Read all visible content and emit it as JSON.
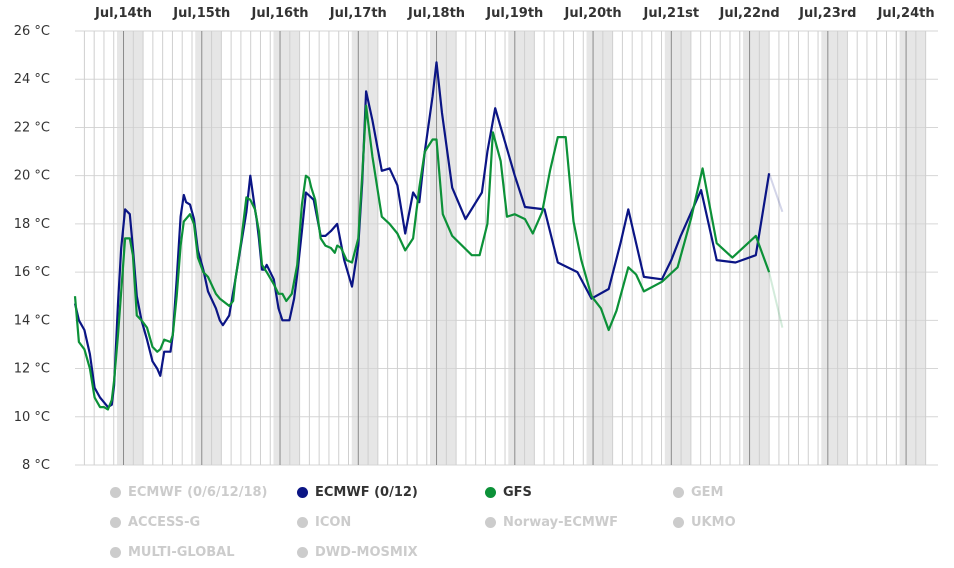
{
  "chart_data": {
    "type": "line",
    "title": "",
    "xlabel": "",
    "ylabel": "",
    "ylim": [
      8,
      26
    ],
    "y_ticks": [
      8,
      10,
      12,
      14,
      16,
      18,
      20,
      22,
      24,
      26
    ],
    "y_unit": "°C",
    "x_unit": "days from Jul 13 00:00",
    "xlim": [
      0.38,
      11.28
    ],
    "categories": [
      "Jul,14th",
      "Jul,15th",
      "Jul,16th",
      "Jul,17th",
      "Jul,18th",
      "Jul,19th",
      "Jul,20th",
      "Jul,21st",
      "Jul,22nd",
      "Jul,23rd",
      "Jul,24th"
    ],
    "category_x": [
      1,
      2,
      3,
      4,
      5,
      6,
      7,
      8,
      9,
      10,
      11
    ],
    "grid": true,
    "night_band_color": "#e6e6e6",
    "legend_position": "bottom",
    "series": [
      {
        "name": "ECMWF (0/12)",
        "color": "#0b1585",
        "active": true,
        "points": [
          [
            0.38,
            14.7
          ],
          [
            0.43,
            14.0
          ],
          [
            0.5,
            13.6
          ],
          [
            0.57,
            12.6
          ],
          [
            0.63,
            11.2
          ],
          [
            0.7,
            10.8
          ],
          [
            0.75,
            10.6
          ],
          [
            0.8,
            10.4
          ],
          [
            0.85,
            10.5
          ],
          [
            0.88,
            11.3
          ],
          [
            0.93,
            14.7
          ],
          [
            0.97,
            17.0
          ],
          [
            1.02,
            18.6
          ],
          [
            1.08,
            18.4
          ],
          [
            1.12,
            17.0
          ],
          [
            1.17,
            15.0
          ],
          [
            1.23,
            14.0
          ],
          [
            1.3,
            13.2
          ],
          [
            1.37,
            12.3
          ],
          [
            1.43,
            12.0
          ],
          [
            1.47,
            11.7
          ],
          [
            1.52,
            12.7
          ],
          [
            1.6,
            12.7
          ],
          [
            1.63,
            13.4
          ],
          [
            1.68,
            15.7
          ],
          [
            1.73,
            18.3
          ],
          [
            1.77,
            19.2
          ],
          [
            1.8,
            18.9
          ],
          [
            1.85,
            18.8
          ],
          [
            1.9,
            18.2
          ],
          [
            1.95,
            16.9
          ],
          [
            2.02,
            16.1
          ],
          [
            2.08,
            15.2
          ],
          [
            2.18,
            14.5
          ],
          [
            2.23,
            14.0
          ],
          [
            2.27,
            13.8
          ],
          [
            2.35,
            14.2
          ],
          [
            2.43,
            15.7
          ],
          [
            2.5,
            17.1
          ],
          [
            2.57,
            18.5
          ],
          [
            2.62,
            20.0
          ],
          [
            2.68,
            18.6
          ],
          [
            2.7,
            18.2
          ],
          [
            2.73,
            17.4
          ],
          [
            2.77,
            16.1
          ],
          [
            2.8,
            16.1
          ],
          [
            2.83,
            16.3
          ],
          [
            2.92,
            15.7
          ],
          [
            2.98,
            14.5
          ],
          [
            3.03,
            14.0
          ],
          [
            3.12,
            14.0
          ],
          [
            3.18,
            14.9
          ],
          [
            3.22,
            15.9
          ],
          [
            3.28,
            17.7
          ],
          [
            3.33,
            19.3
          ],
          [
            3.43,
            19.0
          ],
          [
            3.52,
            17.5
          ],
          [
            3.58,
            17.5
          ],
          [
            3.65,
            17.7
          ],
          [
            3.73,
            18.0
          ],
          [
            3.82,
            16.5
          ],
          [
            3.92,
            15.4
          ],
          [
            4.0,
            17.1
          ],
          [
            4.05,
            19.7
          ],
          [
            4.1,
            23.5
          ],
          [
            4.18,
            22.3
          ],
          [
            4.3,
            20.2
          ],
          [
            4.4,
            20.3
          ],
          [
            4.5,
            19.6
          ],
          [
            4.6,
            17.6
          ],
          [
            4.7,
            19.3
          ],
          [
            4.78,
            18.9
          ],
          [
            4.85,
            21.0
          ],
          [
            4.95,
            23.3
          ],
          [
            5.0,
            24.7
          ],
          [
            5.07,
            22.6
          ],
          [
            5.2,
            19.5
          ],
          [
            5.37,
            18.2
          ],
          [
            5.58,
            19.3
          ],
          [
            5.65,
            21.0
          ],
          [
            5.75,
            22.8
          ],
          [
            6.0,
            20.0
          ],
          [
            6.13,
            18.7
          ],
          [
            6.38,
            18.6
          ],
          [
            6.55,
            16.4
          ],
          [
            6.8,
            16.0
          ],
          [
            6.98,
            14.9
          ],
          [
            7.2,
            15.3
          ],
          [
            7.35,
            17.2
          ],
          [
            7.45,
            18.6
          ],
          [
            7.65,
            15.8
          ],
          [
            7.88,
            15.7
          ],
          [
            8.0,
            16.5
          ],
          [
            8.12,
            17.5
          ],
          [
            8.38,
            19.4
          ],
          [
            8.58,
            16.5
          ],
          [
            8.82,
            16.4
          ],
          [
            9.08,
            16.7
          ],
          [
            9.25,
            20.1
          ]
        ],
        "faded_points": [
          [
            9.25,
            20.1
          ],
          [
            9.42,
            18.5
          ]
        ]
      },
      {
        "name": "GFS",
        "color": "#0c9138",
        "active": true,
        "points": [
          [
            0.38,
            15.0
          ],
          [
            0.43,
            13.1
          ],
          [
            0.5,
            12.8
          ],
          [
            0.57,
            12.0
          ],
          [
            0.63,
            10.8
          ],
          [
            0.7,
            10.4
          ],
          [
            0.75,
            10.4
          ],
          [
            0.8,
            10.3
          ],
          [
            0.85,
            10.7
          ],
          [
            0.88,
            11.5
          ],
          [
            0.93,
            13.4
          ],
          [
            0.97,
            15.2
          ],
          [
            1.02,
            17.4
          ],
          [
            1.08,
            17.4
          ],
          [
            1.12,
            16.7
          ],
          [
            1.17,
            14.2
          ],
          [
            1.23,
            14.0
          ],
          [
            1.3,
            13.7
          ],
          [
            1.37,
            12.9
          ],
          [
            1.43,
            12.7
          ],
          [
            1.47,
            12.8
          ],
          [
            1.52,
            13.2
          ],
          [
            1.6,
            13.1
          ],
          [
            1.63,
            13.4
          ],
          [
            1.68,
            15.0
          ],
          [
            1.73,
            17.1
          ],
          [
            1.77,
            18.1
          ],
          [
            1.85,
            18.4
          ],
          [
            1.9,
            18.0
          ],
          [
            1.95,
            16.6
          ],
          [
            2.02,
            16.0
          ],
          [
            2.08,
            15.8
          ],
          [
            2.18,
            15.1
          ],
          [
            2.23,
            14.9
          ],
          [
            2.27,
            14.8
          ],
          [
            2.35,
            14.6
          ],
          [
            2.4,
            14.8
          ],
          [
            2.43,
            15.7
          ],
          [
            2.5,
            17.2
          ],
          [
            2.57,
            19.1
          ],
          [
            2.62,
            19.0
          ],
          [
            2.68,
            18.6
          ],
          [
            2.73,
            17.7
          ],
          [
            2.77,
            16.3
          ],
          [
            2.83,
            16.0
          ],
          [
            2.92,
            15.5
          ],
          [
            2.98,
            15.1
          ],
          [
            3.03,
            15.1
          ],
          [
            3.08,
            14.8
          ],
          [
            3.15,
            15.1
          ],
          [
            3.22,
            16.3
          ],
          [
            3.28,
            18.8
          ],
          [
            3.33,
            20.0
          ],
          [
            3.37,
            19.9
          ],
          [
            3.4,
            19.5
          ],
          [
            3.45,
            19.0
          ],
          [
            3.52,
            17.4
          ],
          [
            3.58,
            17.1
          ],
          [
            3.65,
            17.0
          ],
          [
            3.7,
            16.8
          ],
          [
            3.73,
            17.1
          ],
          [
            3.78,
            17.0
          ],
          [
            3.85,
            16.5
          ],
          [
            3.92,
            16.4
          ],
          [
            4.0,
            17.4
          ],
          [
            4.05,
            20.0
          ],
          [
            4.1,
            22.9
          ],
          [
            4.18,
            20.8
          ],
          [
            4.3,
            18.3
          ],
          [
            4.4,
            18.0
          ],
          [
            4.5,
            17.6
          ],
          [
            4.6,
            16.9
          ],
          [
            4.7,
            17.4
          ],
          [
            4.78,
            19.5
          ],
          [
            4.85,
            21.0
          ],
          [
            4.95,
            21.5
          ],
          [
            5.0,
            21.5
          ],
          [
            5.08,
            18.4
          ],
          [
            5.2,
            17.5
          ],
          [
            5.45,
            16.7
          ],
          [
            5.55,
            16.7
          ],
          [
            5.65,
            18.0
          ],
          [
            5.72,
            21.8
          ],
          [
            5.82,
            20.6
          ],
          [
            5.9,
            18.3
          ],
          [
            6.0,
            18.4
          ],
          [
            6.13,
            18.2
          ],
          [
            6.23,
            17.6
          ],
          [
            6.35,
            18.5
          ],
          [
            6.45,
            20.2
          ],
          [
            6.55,
            21.6
          ],
          [
            6.65,
            21.6
          ],
          [
            6.75,
            18.1
          ],
          [
            6.85,
            16.5
          ],
          [
            6.98,
            15.0
          ],
          [
            7.1,
            14.5
          ],
          [
            7.2,
            13.6
          ],
          [
            7.3,
            14.4
          ],
          [
            7.45,
            16.2
          ],
          [
            7.55,
            15.9
          ],
          [
            7.65,
            15.2
          ],
          [
            7.88,
            15.6
          ],
          [
            8.08,
            16.2
          ],
          [
            8.25,
            18.2
          ],
          [
            8.4,
            20.3
          ],
          [
            8.58,
            17.2
          ],
          [
            8.78,
            16.6
          ],
          [
            9.08,
            17.5
          ],
          [
            9.25,
            16.0
          ]
        ],
        "faded_points": [
          [
            9.25,
            16.0
          ],
          [
            9.42,
            13.7
          ]
        ]
      }
    ]
  },
  "legend": {
    "items": [
      {
        "label": "ECMWF (0/6/12/18)",
        "color": "#cccccc",
        "active": false
      },
      {
        "label": "ECMWF (0/12)",
        "color": "#0b1585",
        "active": true
      },
      {
        "label": "GFS",
        "color": "#0c9138",
        "active": true
      },
      {
        "label": "GEM",
        "color": "#cccccc",
        "active": false
      },
      {
        "label": "ACCESS-G",
        "color": "#cccccc",
        "active": false
      },
      {
        "label": "ICON",
        "color": "#cccccc",
        "active": false
      },
      {
        "label": "Norway-ECMWF",
        "color": "#cccccc",
        "active": false
      },
      {
        "label": "UKMO",
        "color": "#cccccc",
        "active": false
      },
      {
        "label": "MULTI-GLOBAL",
        "color": "#cccccc",
        "active": false
      },
      {
        "label": "DWD-MOSMIX",
        "color": "#cccccc",
        "active": false
      }
    ],
    "active_text_color": "#333333",
    "inactive_text_color": "#cccccc"
  }
}
